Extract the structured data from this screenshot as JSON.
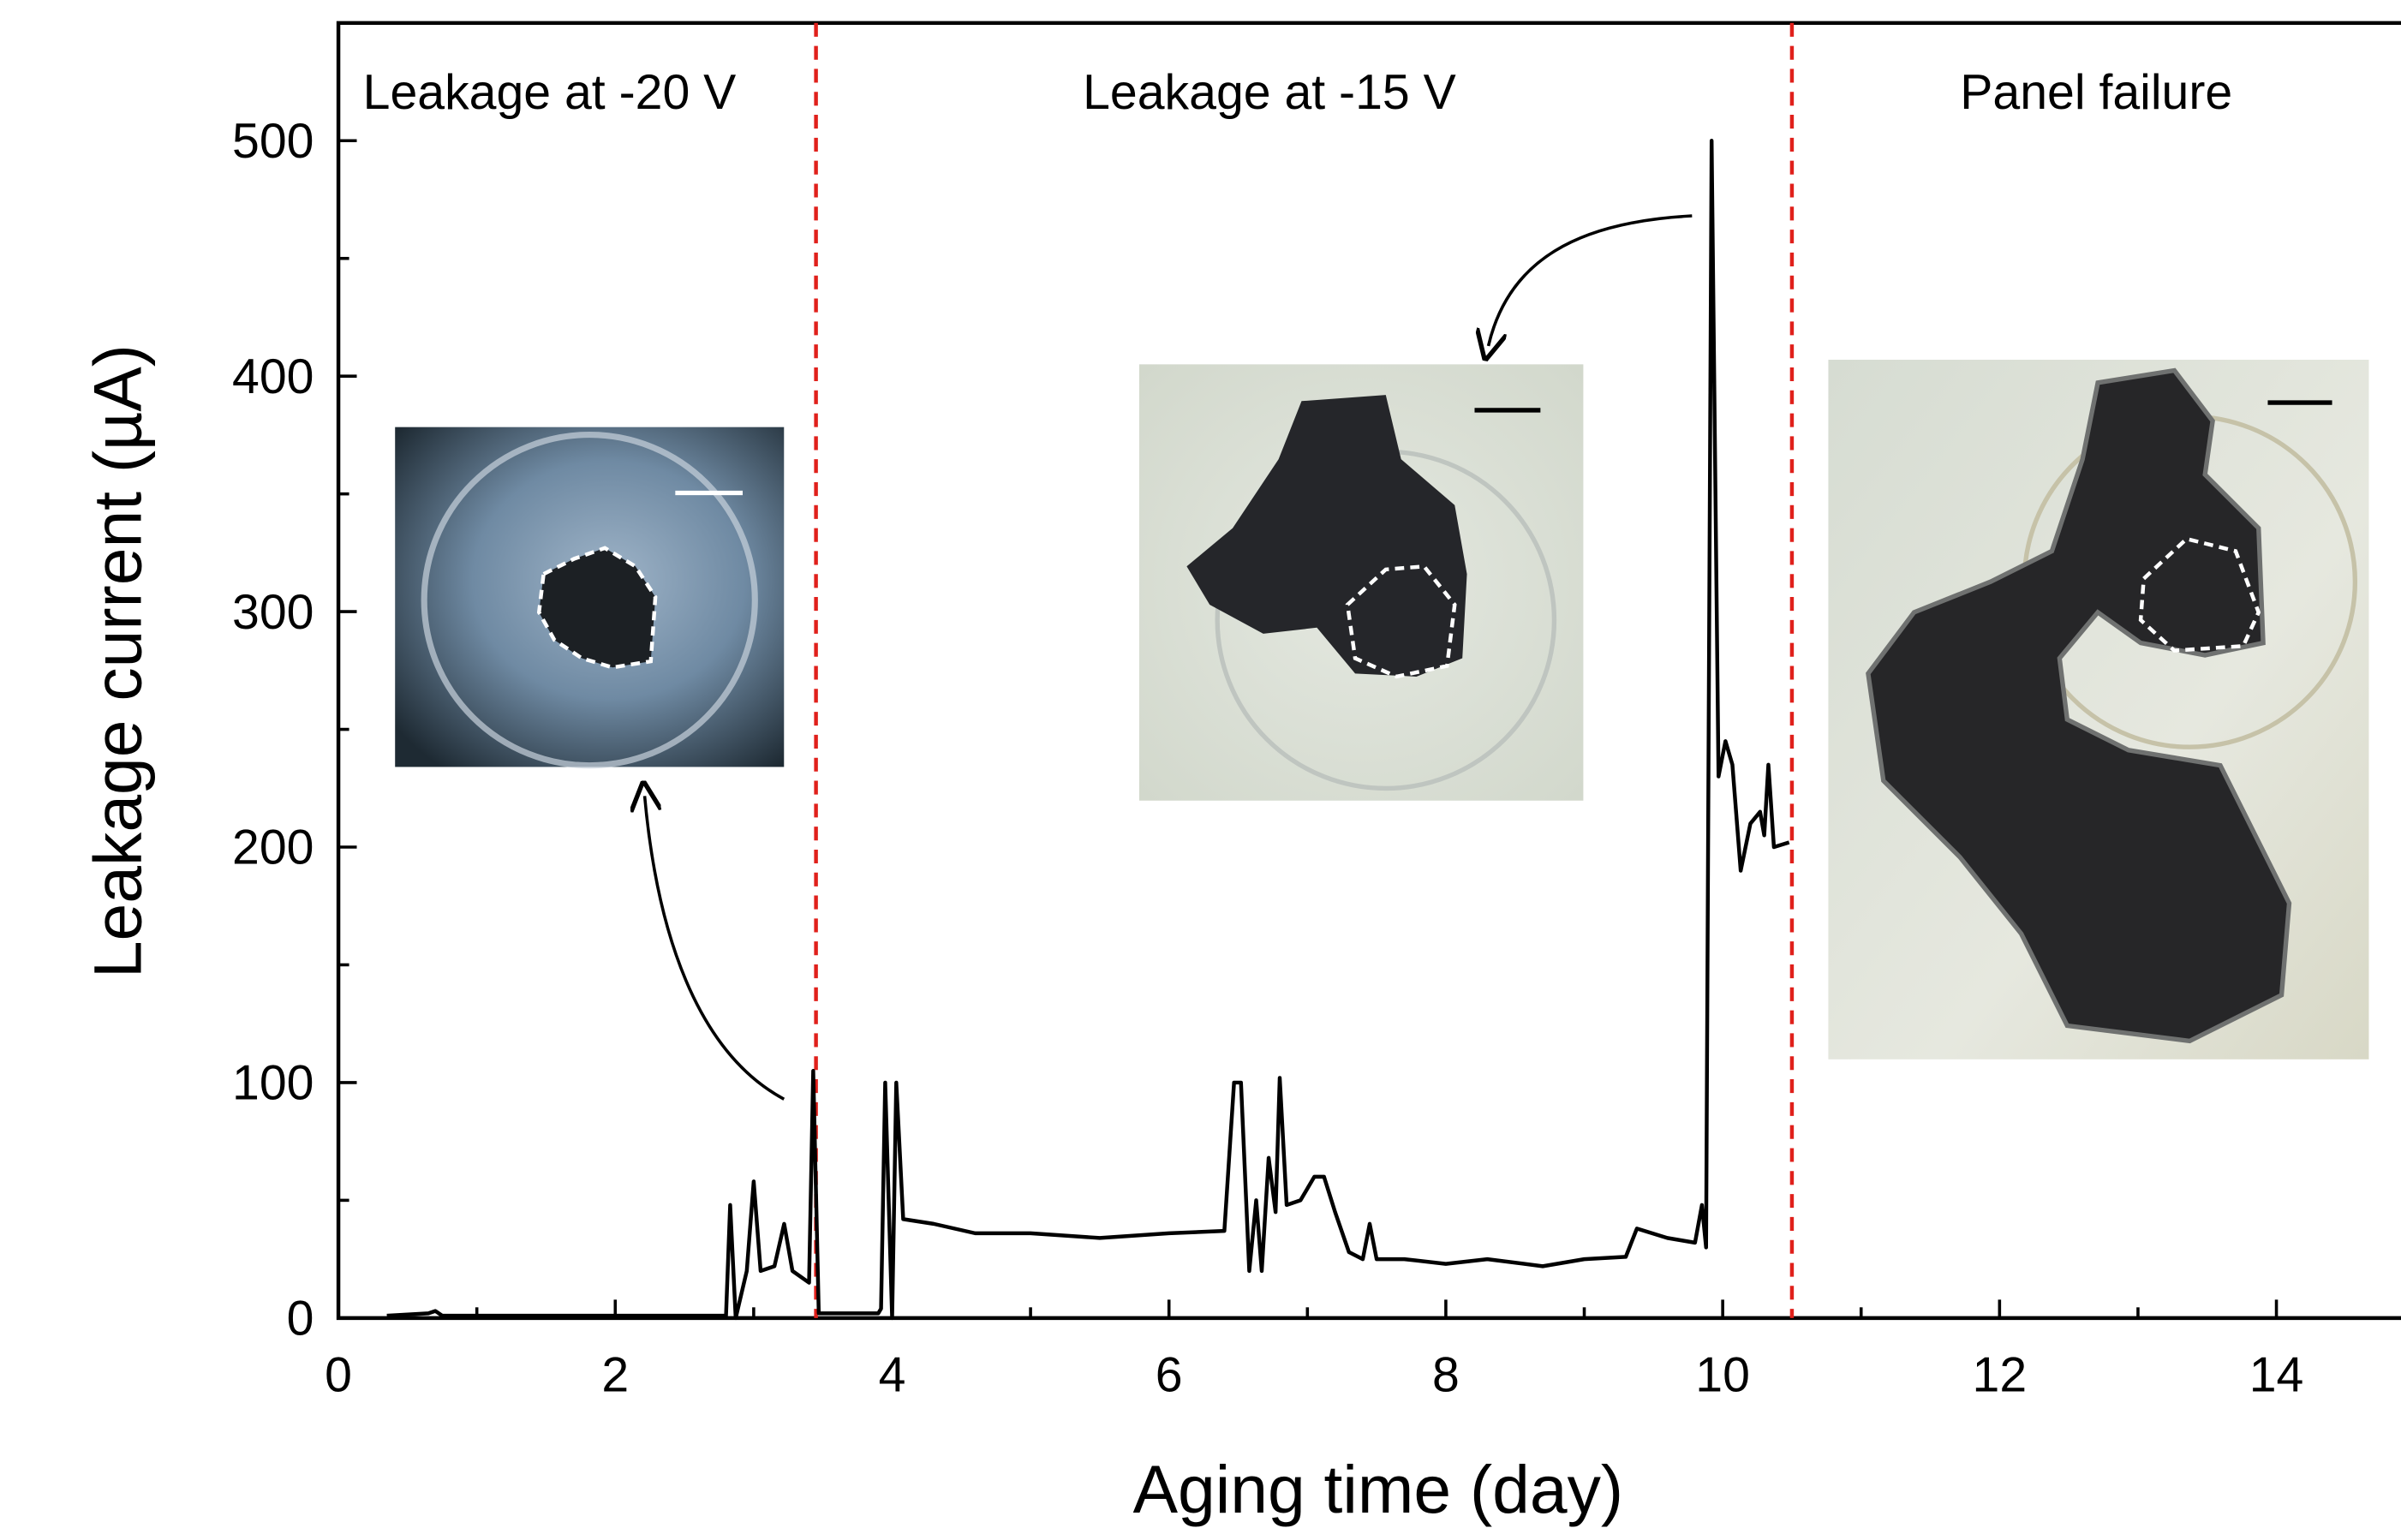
{
  "chart_data": {
    "type": "line",
    "x_label": "Aging time (day)",
    "y_label": "Leakage current (µA)",
    "annotations": [
      "Leakage at -20 V",
      "Leakage at -15 V",
      "Panel failure"
    ],
    "boundaries": [
      3.45,
      10.5
    ],
    "boundary_color": "#e0201b",
    "color": "#000000",
    "xlim": [
      0,
      14.9
    ],
    "ylim": [
      0,
      550
    ],
    "xticks": [
      0,
      2,
      4,
      6,
      8,
      10,
      12,
      14
    ],
    "xminorticks": [
      1,
      3,
      5,
      7,
      9,
      11,
      13
    ],
    "yticks": [
      0,
      100,
      200,
      300,
      400,
      500
    ],
    "yminorticks": [
      50,
      150,
      250,
      350,
      450
    ],
    "x": [
      0.35,
      0.65,
      0.7,
      0.75,
      1.0,
      2.0,
      2.8,
      2.83,
      2.87,
      2.95,
      3.0,
      3.05,
      3.15,
      3.22,
      3.28,
      3.4,
      3.43,
      3.47,
      3.9,
      3.92,
      3.95,
      4.0,
      4.03,
      4.08,
      4.3,
      4.6,
      5.0,
      5.5,
      6.0,
      6.4,
      6.47,
      6.52,
      6.58,
      6.63,
      6.67,
      6.72,
      6.77,
      6.8,
      6.85,
      6.95,
      7.05,
      7.12,
      7.2,
      7.3,
      7.4,
      7.45,
      7.5,
      7.7,
      8.0,
      8.3,
      8.7,
      9.0,
      9.3,
      9.38,
      9.6,
      9.8,
      9.85,
      9.88,
      9.92,
      9.97,
      10.02,
      10.07,
      10.13,
      10.2,
      10.27,
      10.3,
      10.33,
      10.37,
      10.48
    ],
    "values": [
      1,
      2,
      3,
      1,
      1,
      1,
      1,
      48,
      0,
      20,
      58,
      20,
      22,
      40,
      20,
      15,
      105,
      2,
      2,
      4,
      100,
      0,
      100,
      42,
      40,
      36,
      36,
      34,
      36,
      37,
      100,
      100,
      20,
      50,
      20,
      68,
      45,
      102,
      48,
      50,
      60,
      60,
      45,
      28,
      25,
      40,
      25,
      25,
      23,
      25,
      22,
      25,
      26,
      38,
      34,
      32,
      48,
      30,
      500,
      230,
      245,
      235,
      190,
      210,
      215,
      205,
      235,
      200,
      202
    ]
  }
}
